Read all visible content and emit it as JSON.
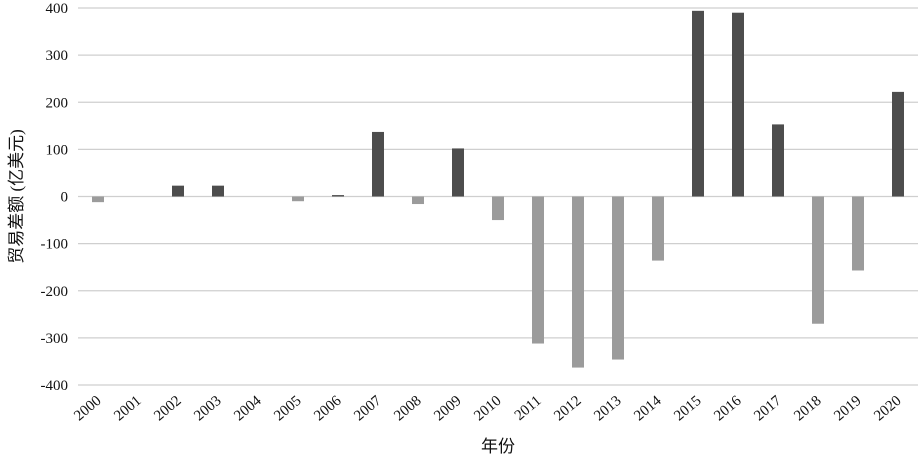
{
  "chart_data": {
    "type": "bar",
    "title": "",
    "xlabel": "年份",
    "ylabel": "贸易差额 (亿美元)",
    "ylim": [
      -400,
      400
    ],
    "yticks": [
      400,
      300,
      200,
      100,
      0,
      -100,
      -200,
      -300,
      -400
    ],
    "grid": true,
    "categories": [
      "2000",
      "2001",
      "2002",
      "2003",
      "2004",
      "2005",
      "2006",
      "2007",
      "2008",
      "2009",
      "2010",
      "2011",
      "2012",
      "2013",
      "2014",
      "2015",
      "2016",
      "2017",
      "2018",
      "2019",
      "2020"
    ],
    "values": [
      -12,
      0,
      23,
      23,
      0,
      -10,
      3,
      137,
      -16,
      102,
      -50,
      -312,
      -363,
      -346,
      -136,
      394,
      390,
      153,
      -270,
      -157,
      222
    ],
    "colors": {
      "positive": "#4d4d4d",
      "negative": "#9b9b9b",
      "grid": "#cfcfcf"
    }
  }
}
